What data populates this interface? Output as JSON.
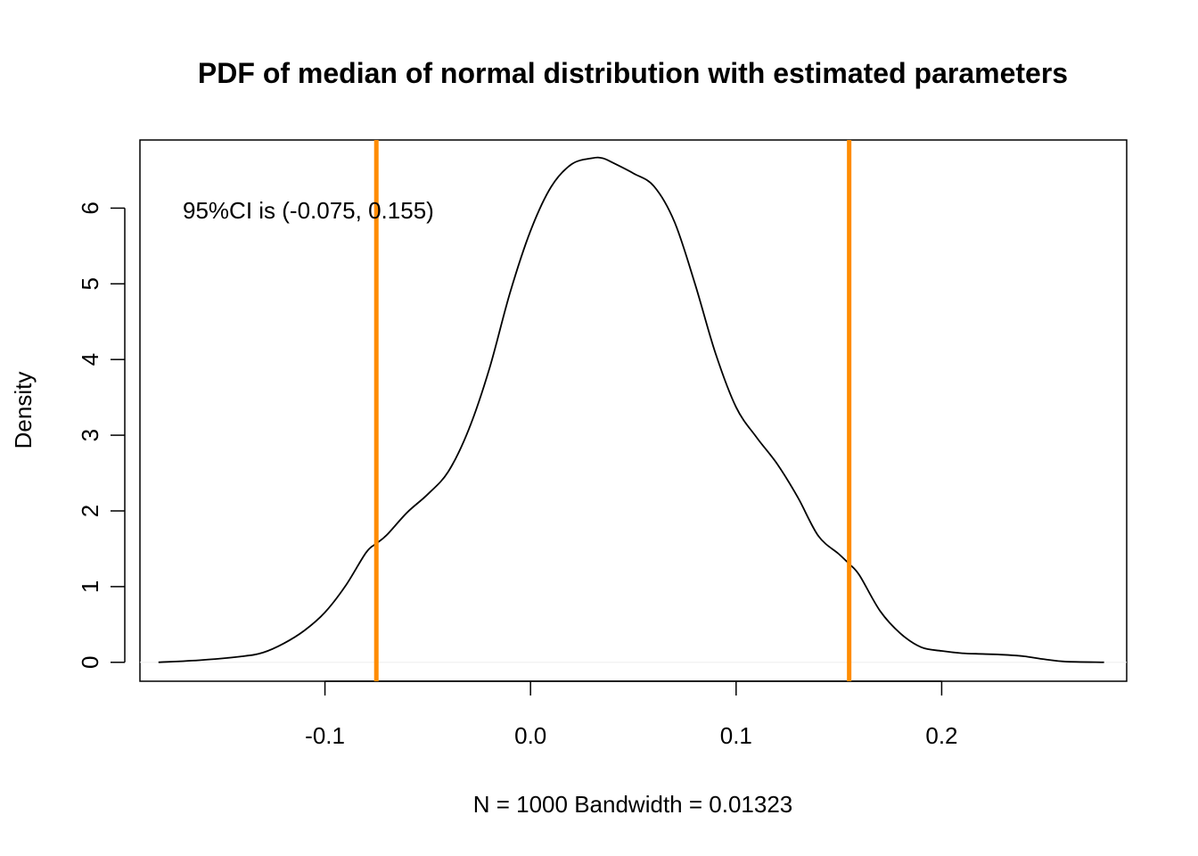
{
  "chart_data": {
    "type": "line",
    "title": "PDF of median of normal distribution with estimated parameters",
    "xlabel": "N = 1000   Bandwidth = 0.01323",
    "ylabel": "Density",
    "xlim": [
      -0.19,
      0.29
    ],
    "ylim": [
      -0.25,
      6.9
    ],
    "xticks": [
      -0.1,
      0.0,
      0.1,
      0.2
    ],
    "xtick_labels": [
      "-0.1",
      "0.0",
      "0.1",
      "0.2"
    ],
    "yticks": [
      0,
      1,
      2,
      3,
      4,
      5,
      6
    ],
    "ytick_labels": [
      "0",
      "1",
      "2",
      "3",
      "4",
      "5",
      "6"
    ],
    "grid": false,
    "annotation": "95%CI is (-0.075, 0.155)",
    "series": [
      {
        "color": "#000000",
        "x": [
          -0.181,
          -0.16,
          -0.14,
          -0.13,
          -0.12,
          -0.11,
          -0.1,
          -0.09,
          -0.08,
          -0.075,
          -0.07,
          -0.06,
          -0.05,
          -0.04,
          -0.03,
          -0.02,
          -0.01,
          0.0,
          0.01,
          0.02,
          0.03,
          0.035,
          0.04,
          0.05,
          0.06,
          0.07,
          0.08,
          0.09,
          0.1,
          0.11,
          0.12,
          0.13,
          0.14,
          0.15,
          0.155,
          0.16,
          0.17,
          0.18,
          0.19,
          0.2,
          0.21,
          0.22,
          0.23,
          0.24,
          0.25,
          0.26,
          0.279
        ],
        "y": [
          0.0,
          0.03,
          0.08,
          0.13,
          0.25,
          0.42,
          0.66,
          1.01,
          1.45,
          1.57,
          1.68,
          1.98,
          2.22,
          2.52,
          3.08,
          3.88,
          4.88,
          5.7,
          6.28,
          6.58,
          6.66,
          6.66,
          6.6,
          6.46,
          6.29,
          5.82,
          5.0,
          4.08,
          3.37,
          2.97,
          2.62,
          2.18,
          1.67,
          1.43,
          1.3,
          1.15,
          0.68,
          0.38,
          0.2,
          0.15,
          0.12,
          0.11,
          0.1,
          0.08,
          0.04,
          0.01,
          0.0
        ]
      }
    ],
    "vlines": [
      {
        "x": -0.075,
        "color": "#FF8C00"
      },
      {
        "x": 0.155,
        "color": "#FF8C00"
      }
    ]
  }
}
